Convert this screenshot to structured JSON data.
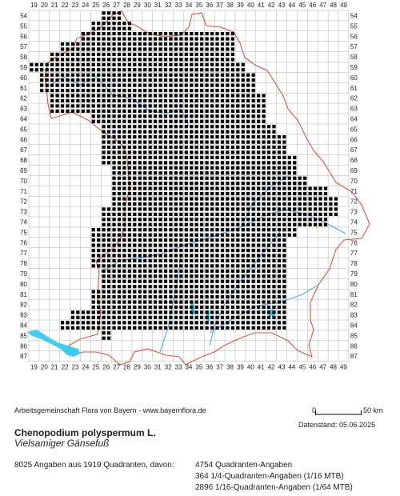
{
  "grid": {
    "columns": [
      "19",
      "20",
      "21",
      "22",
      "23",
      "24",
      "25",
      "26",
      "27",
      "28",
      "29",
      "30",
      "31",
      "32",
      "33",
      "34",
      "35",
      "36",
      "37",
      "38",
      "39",
      "40",
      "41",
      "42",
      "43",
      "44",
      "45",
      "46",
      "47",
      "48",
      "49"
    ],
    "rows": [
      "54",
      "55",
      "56",
      "57",
      "58",
      "59",
      "60",
      "61",
      "62",
      "63",
      "64",
      "65",
      "66",
      "67",
      "68",
      "69",
      "70",
      "71",
      "72",
      "73",
      "74",
      "75",
      "76",
      "77",
      "78",
      "79",
      "80",
      "81",
      "82",
      "83",
      "84",
      "85",
      "86",
      "87"
    ]
  },
  "colors": {
    "grid_line": "#b0b0b0",
    "border": "#e0533c",
    "water": "#33ccee",
    "river": "#55aaee",
    "marker": "#000000"
  },
  "distribution": {
    "row_spans": [
      {
        "row": "54",
        "from": "26",
        "to": "27"
      },
      {
        "row": "55",
        "from": "25",
        "to": "28"
      },
      {
        "row": "56",
        "from": "24",
        "to": "38"
      },
      {
        "row": "57",
        "from": "22",
        "to": "38"
      },
      {
        "row": "58",
        "from": "21",
        "to": "38"
      },
      {
        "row": "59",
        "from": "19",
        "to": "39"
      },
      {
        "row": "60",
        "from": "20",
        "to": "40"
      },
      {
        "row": "61",
        "from": "20",
        "to": "40"
      },
      {
        "row": "62",
        "from": "21",
        "to": "41"
      },
      {
        "row": "63",
        "from": "21",
        "to": "41"
      },
      {
        "row": "64",
        "from": "25",
        "to": "41"
      },
      {
        "row": "65",
        "from": "26",
        "to": "42"
      },
      {
        "row": "66",
        "from": "26",
        "to": "43"
      },
      {
        "row": "67",
        "from": "26",
        "to": "43"
      },
      {
        "row": "68",
        "from": "26",
        "to": "44"
      },
      {
        "row": "69",
        "from": "27",
        "to": "44"
      },
      {
        "row": "70",
        "from": "27",
        "to": "45"
      },
      {
        "row": "71",
        "from": "27",
        "to": "47"
      },
      {
        "row": "72",
        "from": "27",
        "to": "48"
      },
      {
        "row": "73",
        "from": "26",
        "to": "48"
      },
      {
        "row": "74",
        "from": "26",
        "to": "47"
      },
      {
        "row": "75",
        "from": "25",
        "to": "44"
      },
      {
        "row": "76",
        "from": "25",
        "to": "43"
      },
      {
        "row": "77",
        "from": "25",
        "to": "43"
      },
      {
        "row": "78",
        "from": "25",
        "to": "43"
      },
      {
        "row": "79",
        "from": "26",
        "to": "43"
      },
      {
        "row": "80",
        "from": "26",
        "to": "43"
      },
      {
        "row": "81",
        "from": "25",
        "to": "43"
      },
      {
        "row": "82",
        "from": "25",
        "to": "43"
      },
      {
        "row": "83",
        "from": "23",
        "to": "43"
      },
      {
        "row": "84",
        "from": "22",
        "to": "43"
      },
      {
        "row": "85",
        "from": "26",
        "to": "26"
      }
    ]
  },
  "footer": {
    "credit": "Arbeitsgemeinschaft Flora von Bayern - www.bayernflora.de",
    "scale_zero": "0",
    "scale_end": "50 km",
    "date": "Datenstand: 05.06.2025",
    "species_name": "Chenopodium polyspermum L.",
    "common_name": "Vielsamiger Gänsefuß",
    "total": "8025 Angaben aus 1919 Quadranten, davon:",
    "stats": [
      "4754 Quadranten-Angaben",
      "364 1/4-Quadranten-Angaben (1/16 MTB)",
      "2896 1/16-Quadranten-Angaben (1/64 MTB)"
    ]
  }
}
